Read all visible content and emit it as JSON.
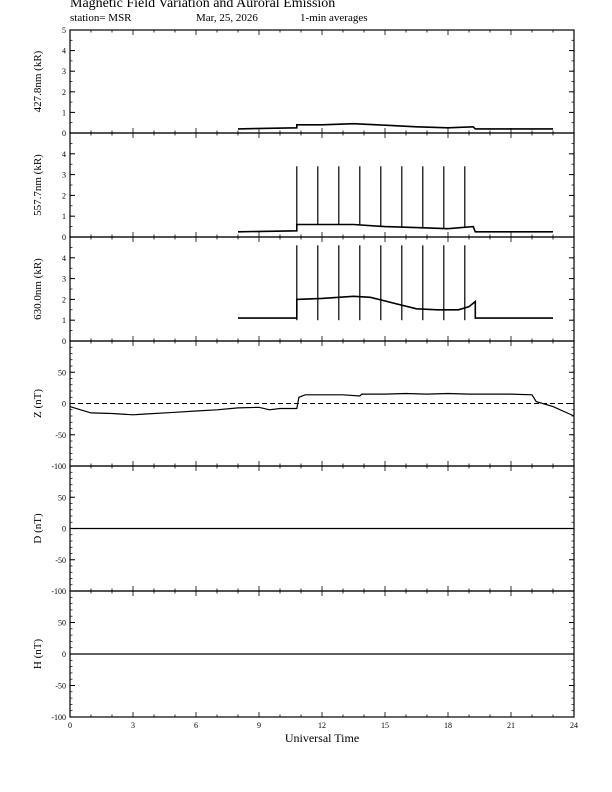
{
  "header": {
    "title": "Magnetic Field Variation and Auroral Emission",
    "station": "station= MSR",
    "date": "Mar, 25,  2026",
    "averaging": "1-min averages"
  },
  "chart_data": [
    {
      "type": "line",
      "ylabel": "427.8nm (kR)",
      "ylim": [
        0,
        5
      ],
      "yticks": [
        0,
        1,
        2,
        3,
        4,
        5
      ],
      "series": [
        {
          "x": [
            8.0,
            10.8,
            10.8,
            12.0,
            13.5,
            15.0,
            16.5,
            18.0,
            19.2,
            19.3,
            21.0,
            23.0
          ],
          "values": [
            0.2,
            0.25,
            0.4,
            0.4,
            0.45,
            0.38,
            0.3,
            0.25,
            0.3,
            0.2,
            0.2,
            0.2
          ]
        }
      ]
    },
    {
      "type": "line",
      "ylabel": "557.7nm (kR)",
      "ylim": [
        0,
        5
      ],
      "yticks": [
        0,
        1,
        2,
        3,
        4
      ],
      "series": [
        {
          "x": [
            8.0,
            10.8,
            10.8,
            12.0,
            13.5,
            15.0,
            16.5,
            18.0,
            19.2,
            19.3,
            21.0,
            23.0
          ],
          "values": [
            0.25,
            0.3,
            0.6,
            0.6,
            0.6,
            0.5,
            0.45,
            0.4,
            0.5,
            0.25,
            0.25,
            0.25
          ]
        }
      ],
      "spikes": {
        "x": [
          10.8,
          11.8,
          12.8,
          13.8,
          14.8,
          15.8,
          16.8,
          17.8,
          18.8
        ],
        "peak": 3.4
      }
    },
    {
      "type": "line",
      "ylabel": "630.0nm (kR)",
      "ylim": [
        0,
        5
      ],
      "yticks": [
        0,
        1,
        2,
        3,
        4
      ],
      "series": [
        {
          "x": [
            8.0,
            10.8,
            10.8,
            12.0,
            13.5,
            14.3,
            15.5,
            16.5,
            17.5,
            18.5,
            19.0,
            19.3,
            19.3,
            21.0,
            23.0
          ],
          "values": [
            1.1,
            1.1,
            2.0,
            2.05,
            2.15,
            2.1,
            1.8,
            1.55,
            1.5,
            1.5,
            1.65,
            1.9,
            1.1,
            1.1,
            1.1
          ]
        }
      ],
      "spikes": {
        "x": [
          10.8,
          11.8,
          12.8,
          13.8,
          14.8,
          15.8,
          16.8,
          17.8,
          18.8
        ],
        "peak": 4.6
      }
    },
    {
      "type": "line",
      "ylabel": "Z (nT)",
      "ylim": [
        -100,
        100
      ],
      "yticks": [
        -100,
        -50,
        0,
        50
      ],
      "zero_line": "dashed",
      "series": [
        {
          "x": [
            0.0,
            0.5,
            1.0,
            2.0,
            3.0,
            3.5,
            5.0,
            6.0,
            7.0,
            8.0,
            9.0,
            9.5,
            10.0,
            10.8,
            10.9,
            11.2,
            12.0,
            13.0,
            13.8,
            13.9,
            15.0,
            16.0,
            17.0,
            18.0,
            19.0,
            20.0,
            21.0,
            22.0,
            22.2,
            23.0,
            24.0
          ],
          "values": [
            -5,
            -10,
            -15,
            -16,
            -18,
            -17,
            -14,
            -12,
            -10,
            -7,
            -6,
            -10,
            -8,
            -8,
            10,
            14,
            14,
            14,
            12,
            15,
            15,
            16,
            15,
            16,
            15,
            15,
            15,
            14,
            3,
            -5,
            -20
          ]
        }
      ]
    },
    {
      "type": "line",
      "ylabel": "D (nT)",
      "ylim": [
        -100,
        100
      ],
      "yticks": [
        -100,
        -50,
        0,
        50
      ],
      "zero_line": "dashed",
      "series": [
        {
          "x": [
            0,
            24
          ],
          "values": [
            0,
            0
          ]
        }
      ]
    },
    {
      "type": "line",
      "ylabel": "H (nT)",
      "ylim": [
        -100,
        100
      ],
      "yticks": [
        -100,
        -50,
        0,
        50
      ],
      "zero_line": "dashed",
      "series": [
        {
          "x": [
            0,
            24
          ],
          "values": [
            0,
            0
          ]
        }
      ]
    }
  ],
  "x_axis": {
    "label": "Universal Time",
    "ticks": [
      0,
      3,
      6,
      9,
      12,
      15,
      18,
      21,
      24
    ],
    "xlim": [
      0,
      24
    ]
  }
}
